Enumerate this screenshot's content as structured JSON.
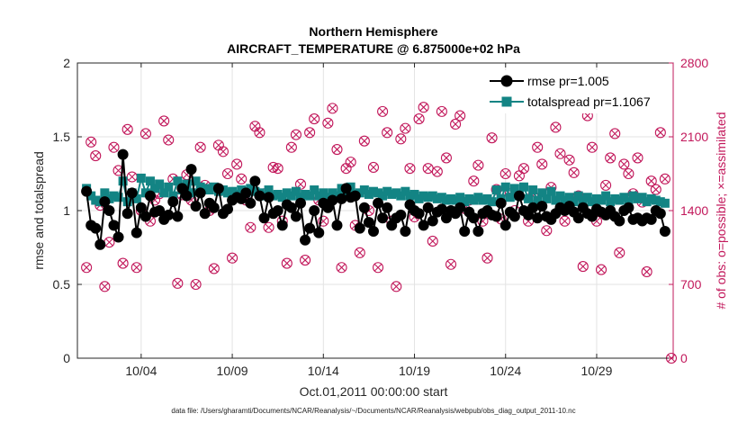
{
  "chart_data": {
    "type": "line",
    "title": "Northern Hemisphere",
    "subtitle": "AIRCRAFT_TEMPERATURE @ 6.875000e+02 hPa",
    "xlabel": "Oct.01,2011 00:00:00 start",
    "ylabel": "rmse and totalspread",
    "y2label": "# of obs: o=possible; ×=assimilated",
    "xlim": [
      0.5,
      33.2
    ],
    "ylim": [
      0,
      2
    ],
    "y2lim": [
      0,
      2800
    ],
    "x_ticks": [
      4,
      9,
      14,
      19,
      24,
      29
    ],
    "x_tick_labels": [
      "10/04",
      "10/09",
      "10/14",
      "10/19",
      "10/24",
      "10/29"
    ],
    "y_ticks": [
      0,
      0.5,
      1,
      1.5,
      2
    ],
    "y_tick_labels": [
      "0",
      "0.5",
      "1",
      "1.5",
      "2"
    ],
    "y2_ticks": [
      0,
      700,
      1400,
      2100,
      2800
    ],
    "y2_tick_labels": [
      "0",
      "700",
      "1400",
      "2100",
      "2800"
    ],
    "grid": true,
    "legend_position": "top-right",
    "series": [
      {
        "name": "rmse pr=1.005",
        "color": "#000000",
        "marker": "circle",
        "x": [
          1.0,
          1.25,
          1.5,
          1.75,
          2.0,
          2.25,
          2.5,
          2.75,
          3.0,
          3.25,
          3.5,
          3.75,
          4.0,
          4.25,
          4.5,
          4.75,
          5.0,
          5.25,
          5.5,
          5.75,
          6.0,
          6.25,
          6.5,
          6.75,
          7.0,
          7.25,
          7.5,
          7.75,
          8.0,
          8.25,
          8.5,
          8.75,
          9.0,
          9.25,
          9.5,
          9.75,
          10.0,
          10.25,
          10.5,
          10.75,
          11.0,
          11.25,
          11.5,
          11.75,
          12.0,
          12.25,
          12.5,
          12.75,
          13.0,
          13.25,
          13.5,
          13.75,
          14.0,
          14.25,
          14.5,
          14.75,
          15.0,
          15.25,
          15.5,
          15.75,
          16.0,
          16.25,
          16.5,
          16.75,
          17.0,
          17.25,
          17.5,
          17.75,
          18.0,
          18.25,
          18.5,
          18.75,
          19.0,
          19.25,
          19.5,
          19.75,
          20.0,
          20.25,
          20.5,
          20.75,
          21.0,
          21.25,
          21.5,
          21.75,
          22.0,
          22.25,
          22.5,
          22.75,
          23.0,
          23.25,
          23.5,
          23.75,
          24.0,
          24.25,
          24.5,
          24.75,
          25.0,
          25.25,
          25.5,
          25.75,
          26.0,
          26.25,
          26.5,
          26.75,
          27.0,
          27.25,
          27.5,
          27.75,
          28.0,
          28.25,
          28.5,
          28.75,
          29.0,
          29.25,
          29.5,
          29.75,
          30.0,
          30.25,
          30.5,
          30.75,
          31.0,
          31.25,
          31.5,
          31.75,
          32.0,
          32.25,
          32.5,
          32.75
        ],
        "values": [
          1.13,
          0.9,
          0.88,
          0.77,
          1.06,
          1.0,
          0.9,
          0.82,
          1.38,
          0.98,
          1.12,
          0.85,
          1.02,
          0.96,
          1.1,
          0.99,
          1.0,
          0.94,
          0.97,
          1.06,
          0.96,
          1.15,
          1.1,
          1.28,
          1.03,
          1.12,
          0.98,
          1.05,
          1.02,
          1.15,
          0.98,
          1.01,
          1.07,
          1.09,
          1.08,
          1.12,
          1.05,
          1.2,
          1.1,
          0.95,
          1.09,
          0.98,
          1.0,
          0.9,
          1.04,
          1.02,
          0.96,
          1.05,
          0.8,
          0.88,
          1.0,
          0.85,
          1.05,
          1.02,
          1.07,
          0.9,
          1.08,
          1.15,
          1.09,
          1.1,
          0.88,
          1.02,
          0.92,
          0.86,
          1.05,
          0.95,
          1.02,
          0.9,
          0.95,
          0.97,
          0.86,
          1.04,
          1.0,
          0.98,
          0.9,
          1.02,
          0.93,
          0.99,
          1.01,
          0.95,
          1.0,
          0.98,
          1.02,
          0.86,
          0.99,
          0.95,
          0.86,
          0.98,
          1.0,
          0.97,
          0.96,
          1.05,
          0.9,
          0.99,
          0.96,
          1.1,
          1.0,
          0.97,
          1.02,
          0.95,
          1.03,
          0.96,
          0.94,
          0.98,
          1.02,
          1.0,
          1.03,
          0.99,
          0.95,
          1.02,
          0.98,
          0.96,
          1.01,
          0.99,
          0.97,
          1.0,
          0.96,
          0.93,
          1.0,
          1.02,
          0.94,
          0.95,
          0.93,
          0.95,
          0.94,
          1.0,
          0.98,
          0.86
        ]
      },
      {
        "name": "totalspread pr=1.1067",
        "color": "#138484",
        "marker": "square",
        "x": [
          1.0,
          1.25,
          1.5,
          1.75,
          2.0,
          2.25,
          2.5,
          2.75,
          3.0,
          3.25,
          3.5,
          3.75,
          4.0,
          4.25,
          4.5,
          4.75,
          5.0,
          5.25,
          5.5,
          5.75,
          6.0,
          6.25,
          6.5,
          6.75,
          7.0,
          7.25,
          7.5,
          7.75,
          8.0,
          8.25,
          8.5,
          8.75,
          9.0,
          9.25,
          9.5,
          9.75,
          10.0,
          10.25,
          10.5,
          10.75,
          11.0,
          11.25,
          11.5,
          11.75,
          12.0,
          12.25,
          12.5,
          12.75,
          13.0,
          13.25,
          13.5,
          13.75,
          14.0,
          14.25,
          14.5,
          14.75,
          15.0,
          15.25,
          15.5,
          15.75,
          16.0,
          16.25,
          16.5,
          16.75,
          17.0,
          17.25,
          17.5,
          17.75,
          18.0,
          18.25,
          18.5,
          18.75,
          19.0,
          19.25,
          19.5,
          19.75,
          20.0,
          20.25,
          20.5,
          20.75,
          21.0,
          21.25,
          21.5,
          21.75,
          22.0,
          22.25,
          22.5,
          22.75,
          23.0,
          23.25,
          23.5,
          23.75,
          24.0,
          24.25,
          24.5,
          24.75,
          25.0,
          25.25,
          25.5,
          25.75,
          26.0,
          26.25,
          26.5,
          26.75,
          27.0,
          27.25,
          27.5,
          27.75,
          28.0,
          28.25,
          28.5,
          28.75,
          29.0,
          29.25,
          29.5,
          29.75,
          30.0,
          30.25,
          30.5,
          30.75,
          31.0,
          31.25,
          31.5,
          31.75,
          32.0,
          32.25,
          32.5,
          32.75
        ],
        "values": [
          1.15,
          1.1,
          1.07,
          1.06,
          1.12,
          1.08,
          1.1,
          1.09,
          1.2,
          1.06,
          1.12,
          1.08,
          1.22,
          1.12,
          1.2,
          1.15,
          1.18,
          1.12,
          1.16,
          1.1,
          1.2,
          1.14,
          1.18,
          1.12,
          1.2,
          1.16,
          1.15,
          1.14,
          1.16,
          1.13,
          1.14,
          1.12,
          1.13,
          1.11,
          1.14,
          1.12,
          1.15,
          1.13,
          1.12,
          1.1,
          1.14,
          1.1,
          1.11,
          1.09,
          1.12,
          1.1,
          1.13,
          1.09,
          1.11,
          1.1,
          1.14,
          1.1,
          1.12,
          1.09,
          1.12,
          1.1,
          1.15,
          1.1,
          1.16,
          1.11,
          1.12,
          1.14,
          1.11,
          1.13,
          1.12,
          1.1,
          1.13,
          1.11,
          1.12,
          1.1,
          1.13,
          1.1,
          1.11,
          1.08,
          1.1,
          1.09,
          1.1,
          1.08,
          1.09,
          1.07,
          1.08,
          1.07,
          1.09,
          1.06,
          1.08,
          1.07,
          1.09,
          1.07,
          1.08,
          1.06,
          1.14,
          1.08,
          1.16,
          1.09,
          1.15,
          1.1,
          1.16,
          1.08,
          1.14,
          1.07,
          1.12,
          1.08,
          1.13,
          1.07,
          1.1,
          1.07,
          1.09,
          1.06,
          1.1,
          1.07,
          1.09,
          1.06,
          1.08,
          1.07,
          1.1,
          1.06,
          1.08,
          1.07,
          1.09,
          1.06,
          1.1,
          1.08,
          1.09,
          1.06,
          1.08,
          1.07,
          1.06,
          1.05
        ]
      },
      {
        "name": "obs possible",
        "color": "#c2185b",
        "marker": "open-circle",
        "axis": "right",
        "x": [
          1.0,
          1.25,
          1.5,
          1.75,
          2.0,
          2.25,
          2.5,
          2.75,
          3.0,
          3.25,
          3.5,
          3.75,
          4.0,
          4.25,
          4.5,
          4.75,
          5.0,
          5.25,
          5.5,
          5.75,
          6.0,
          6.25,
          6.5,
          6.75,
          7.0,
          7.25,
          7.5,
          7.75,
          8.0,
          8.25,
          8.5,
          8.75,
          9.0,
          9.25,
          9.5,
          9.75,
          10.0,
          10.25,
          10.5,
          10.75,
          11.0,
          11.25,
          11.5,
          11.75,
          12.0,
          12.25,
          12.5,
          12.75,
          13.0,
          13.25,
          13.5,
          13.75,
          14.0,
          14.25,
          14.5,
          14.75,
          15.0,
          15.25,
          15.5,
          15.75,
          16.0,
          16.25,
          16.5,
          16.75,
          17.0,
          17.25,
          17.5,
          17.75,
          18.0,
          18.25,
          18.5,
          18.75,
          19.0,
          19.25,
          19.5,
          19.75,
          20.0,
          20.25,
          20.5,
          20.75,
          21.0,
          21.25,
          21.5,
          21.75,
          22.0,
          22.25,
          22.5,
          22.75,
          23.0,
          23.25,
          23.5,
          23.75,
          24.0,
          24.25,
          24.5,
          24.75,
          25.0,
          25.25,
          25.5,
          25.75,
          26.0,
          26.25,
          26.5,
          26.75,
          27.0,
          27.25,
          27.5,
          27.75,
          28.0,
          28.25,
          28.5,
          28.75,
          29.0,
          29.25,
          29.5,
          29.75,
          30.0,
          30.25,
          30.5,
          30.75,
          31.0,
          31.25,
          31.5,
          31.75,
          32.0,
          32.25,
          32.5,
          32.75
        ],
        "values": [
          860,
          2050,
          1920,
          1450,
          680,
          1100,
          2000,
          1780,
          900,
          2170,
          1720,
          860,
          1400,
          2130,
          1300,
          1500,
          1560,
          2250,
          2070,
          1700,
          710,
          1550,
          1740,
          1500,
          700,
          2000,
          1640,
          1400,
          850,
          2020,
          1960,
          1750,
          950,
          1840,
          1700,
          1500,
          1240,
          2200,
          2140,
          1560,
          1240,
          1810,
          1800,
          1300,
          900,
          2000,
          2120,
          1650,
          930,
          2140,
          2270,
          1500,
          1300,
          2230,
          2370,
          1980,
          860,
          1800,
          1860,
          1260,
          1000,
          2060,
          1400,
          1810,
          860,
          2340,
          2140,
          1300,
          680,
          2080,
          2180,
          1800,
          1340,
          2270,
          2380,
          1800,
          1110,
          1770,
          2340,
          1900,
          890,
          2220,
          2300,
          1420,
          1500,
          1680,
          1830,
          1300,
          950,
          2090,
          1600,
          1320,
          1750,
          1560,
          1400,
          1730,
          1800,
          1300,
          1540,
          2000,
          1840,
          1210,
          1620,
          2190,
          1940,
          1300,
          1880,
          1760,
          1540,
          870,
          2300,
          2000,
          1300,
          840,
          1640,
          1900,
          2130,
          1000,
          1840,
          1750,
          1560,
          1900,
          1480,
          820,
          1680,
          1600,
          2140,
          1700
        ]
      }
    ]
  },
  "footer": "data file: /Users/gharamti/Documents/NCAR/Reanalysis/~/Documents/NCAR/Reanalysis/webpub/obs_diag_output_2011-10.nc"
}
